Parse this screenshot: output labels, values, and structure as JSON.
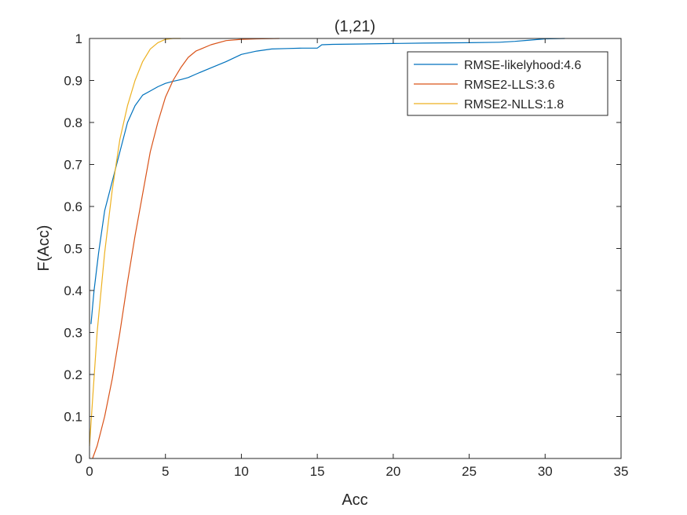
{
  "chart_data": {
    "type": "line",
    "title": "(1,21)",
    "xlabel": "Acc",
    "ylabel": "F(Acc)",
    "xlim": [
      0,
      35
    ],
    "ylim": [
      0,
      1
    ],
    "xticks": [
      0,
      5,
      10,
      15,
      20,
      25,
      30,
      35
    ],
    "yticks": [
      0,
      0.1,
      0.2,
      0.3,
      0.4,
      0.5,
      0.6,
      0.7,
      0.8,
      0.9,
      1
    ],
    "xtick_labels": [
      "0",
      "5",
      "10",
      "15",
      "20",
      "25",
      "30",
      "35"
    ],
    "ytick_labels": [
      "0",
      "0.1",
      "0.2",
      "0.3",
      "0.4",
      "0.5",
      "0.6",
      "0.7",
      "0.8",
      "0.9",
      "1"
    ],
    "grid": false,
    "legend_position": "top-right",
    "series": [
      {
        "name": "RMSE-likelyhood:4.6",
        "color": "#0072BD",
        "x": [
          0.1,
          0.3,
          0.6,
          1.0,
          1.5,
          2.0,
          2.5,
          3.0,
          3.5,
          4.0,
          4.5,
          5.0,
          5.5,
          6.0,
          6.5,
          7.0,
          8.0,
          9.0,
          10.0,
          11.0,
          12.0,
          13.0,
          14.0,
          15.0,
          15.3,
          16.0,
          18.0,
          20.0,
          22.0,
          25.0,
          27.0,
          28.0,
          29.0,
          30.0,
          31.3
        ],
        "y": [
          0.32,
          0.4,
          0.49,
          0.59,
          0.66,
          0.73,
          0.8,
          0.84,
          0.865,
          0.875,
          0.885,
          0.893,
          0.898,
          0.902,
          0.907,
          0.915,
          0.93,
          0.945,
          0.962,
          0.97,
          0.975,
          0.976,
          0.977,
          0.977,
          0.985,
          0.986,
          0.987,
          0.988,
          0.989,
          0.99,
          0.991,
          0.993,
          0.996,
          0.999,
          1.0
        ]
      },
      {
        "name": "RMSE2-LLS:3.6",
        "color": "#D95319",
        "x": [
          0.2,
          0.5,
          1.0,
          1.5,
          2.0,
          2.5,
          3.0,
          3.5,
          4.0,
          4.5,
          5.0,
          5.5,
          6.0,
          6.5,
          7.0,
          8.0,
          9.0,
          10.0,
          11.0,
          12.5
        ],
        "y": [
          0.0,
          0.03,
          0.1,
          0.19,
          0.3,
          0.42,
          0.53,
          0.63,
          0.73,
          0.8,
          0.86,
          0.9,
          0.93,
          0.955,
          0.97,
          0.985,
          0.995,
          0.998,
          0.999,
          1.0
        ]
      },
      {
        "name": "RMSE2-NLLS:1.8",
        "color": "#EDB120",
        "x": [
          0.0,
          0.2,
          0.5,
          1.0,
          1.5,
          2.0,
          2.5,
          3.0,
          3.5,
          4.0,
          4.5,
          5.0,
          5.5,
          6.0
        ],
        "y": [
          0.03,
          0.14,
          0.3,
          0.49,
          0.64,
          0.76,
          0.84,
          0.9,
          0.945,
          0.975,
          0.99,
          0.998,
          1.0,
          1.0
        ]
      }
    ]
  }
}
